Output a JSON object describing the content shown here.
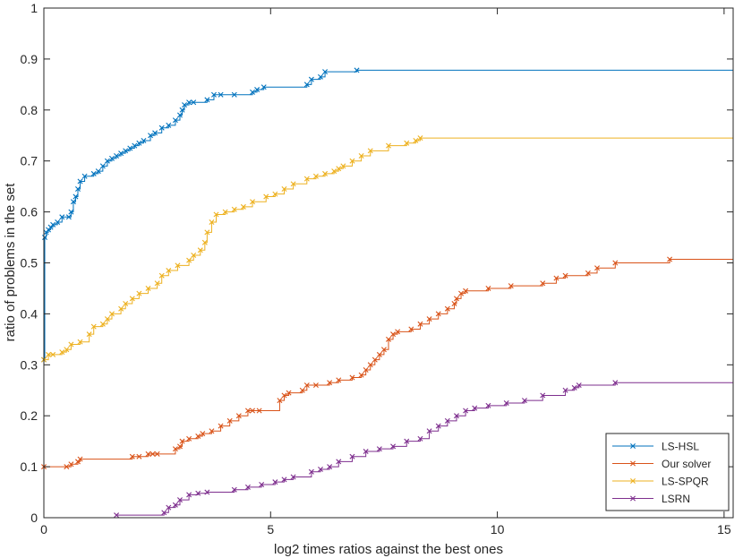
{
  "chart_data": {
    "type": "line",
    "title": "",
    "xlabel": "log2 times ratios against the best ones",
    "ylabel": "ratio of problems in the set",
    "xlim": [
      0,
      15.2
    ],
    "ylim": [
      0,
      1
    ],
    "xticks": [
      0,
      5,
      10,
      15
    ],
    "xtick_labels": [
      "0",
      "5",
      "10",
      "15"
    ],
    "yticks": [
      0,
      0.1,
      0.2,
      0.3,
      0.4,
      0.5,
      0.6,
      0.7,
      0.8,
      0.9,
      1
    ],
    "ytick_labels": [
      "0",
      "0.1",
      "0.2",
      "0.3",
      "0.4",
      "0.5",
      "0.6",
      "0.7",
      "0.8",
      "0.9",
      "1"
    ],
    "grid": false,
    "legend_position": "bottom-right",
    "marker": "x",
    "series": [
      {
        "name": "LS-HSL",
        "color": "#0072BD",
        "x": [
          0,
          0.02,
          0.05,
          0.1,
          0.15,
          0.2,
          0.3,
          0.4,
          0.55,
          0.6,
          0.65,
          0.7,
          0.75,
          0.8,
          0.9,
          1.1,
          1.2,
          1.3,
          1.4,
          1.5,
          1.6,
          1.7,
          1.8,
          1.9,
          2.0,
          2.1,
          2.2,
          2.35,
          2.45,
          2.6,
          2.75,
          2.9,
          3.0,
          3.05,
          3.1,
          3.2,
          3.3,
          3.6,
          3.75,
          3.9,
          4.2,
          4.6,
          4.7,
          4.85,
          5.8,
          5.9,
          6.1,
          6.2,
          6.9
        ],
        "y": [
          0.31,
          0.55,
          0.56,
          0.565,
          0.57,
          0.575,
          0.58,
          0.59,
          0.59,
          0.6,
          0.62,
          0.63,
          0.645,
          0.66,
          0.67,
          0.675,
          0.68,
          0.69,
          0.7,
          0.705,
          0.71,
          0.715,
          0.72,
          0.725,
          0.73,
          0.735,
          0.74,
          0.75,
          0.755,
          0.765,
          0.77,
          0.78,
          0.79,
          0.8,
          0.81,
          0.815,
          0.815,
          0.82,
          0.83,
          0.83,
          0.83,
          0.835,
          0.84,
          0.845,
          0.85,
          0.86,
          0.865,
          0.875,
          0.878
        ],
        "final_value": 0.878
      },
      {
        "name": "Our solver",
        "color": "#D95319",
        "x": [
          0,
          0.5,
          0.6,
          0.75,
          0.8,
          1.95,
          2.1,
          2.3,
          2.4,
          2.5,
          2.9,
          3.0,
          3.05,
          3.2,
          3.4,
          3.5,
          3.7,
          3.9,
          4.1,
          4.3,
          4.5,
          4.6,
          4.75,
          5.2,
          5.3,
          5.4,
          5.7,
          5.8,
          6.0,
          6.3,
          6.5,
          6.8,
          7.0,
          7.1,
          7.2,
          7.3,
          7.4,
          7.5,
          7.6,
          7.7,
          7.8,
          8.1,
          8.3,
          8.5,
          8.7,
          8.9,
          9.05,
          9.1,
          9.2,
          9.3,
          9.8,
          10.3,
          11.0,
          11.3,
          11.5,
          12.0,
          12.2,
          12.6,
          13.8
        ],
        "y": [
          0.1,
          0.1,
          0.105,
          0.11,
          0.115,
          0.12,
          0.12,
          0.125,
          0.125,
          0.125,
          0.135,
          0.14,
          0.15,
          0.155,
          0.16,
          0.165,
          0.17,
          0.18,
          0.19,
          0.2,
          0.21,
          0.21,
          0.21,
          0.23,
          0.24,
          0.245,
          0.25,
          0.26,
          0.26,
          0.265,
          0.27,
          0.275,
          0.28,
          0.29,
          0.3,
          0.31,
          0.32,
          0.33,
          0.35,
          0.36,
          0.365,
          0.37,
          0.38,
          0.39,
          0.4,
          0.41,
          0.42,
          0.43,
          0.44,
          0.445,
          0.45,
          0.455,
          0.46,
          0.47,
          0.475,
          0.48,
          0.49,
          0.5,
          0.507
        ],
        "final_value": 0.507
      },
      {
        "name": "LS-SPQR",
        "color": "#EDB120",
        "x": [
          0,
          0.1,
          0.2,
          0.4,
          0.5,
          0.6,
          0.8,
          1.0,
          1.1,
          1.3,
          1.4,
          1.5,
          1.7,
          1.8,
          1.95,
          2.1,
          2.3,
          2.5,
          2.6,
          2.75,
          2.95,
          3.2,
          3.3,
          3.45,
          3.55,
          3.6,
          3.7,
          3.8,
          4.0,
          4.2,
          4.4,
          4.6,
          4.9,
          5.1,
          5.3,
          5.5,
          5.8,
          6.0,
          6.2,
          6.4,
          6.5,
          6.6,
          6.8,
          7.0,
          7.2,
          7.6,
          8.0,
          8.2,
          8.3
        ],
        "y": [
          0.31,
          0.32,
          0.32,
          0.325,
          0.33,
          0.34,
          0.345,
          0.36,
          0.375,
          0.38,
          0.39,
          0.4,
          0.41,
          0.42,
          0.43,
          0.44,
          0.45,
          0.46,
          0.475,
          0.485,
          0.495,
          0.505,
          0.515,
          0.525,
          0.54,
          0.56,
          0.58,
          0.595,
          0.6,
          0.605,
          0.61,
          0.62,
          0.63,
          0.635,
          0.645,
          0.655,
          0.665,
          0.67,
          0.675,
          0.68,
          0.685,
          0.69,
          0.7,
          0.71,
          0.72,
          0.73,
          0.735,
          0.74,
          0.745
        ],
        "final_value": 0.745
      },
      {
        "name": "LSRN",
        "color": "#7E2F8E",
        "x": [
          1.6,
          2.65,
          2.75,
          2.9,
          3.0,
          3.2,
          3.4,
          3.6,
          4.2,
          4.5,
          4.8,
          5.1,
          5.3,
          5.5,
          5.9,
          6.1,
          6.3,
          6.5,
          6.8,
          7.1,
          7.4,
          7.7,
          8.0,
          8.3,
          8.5,
          8.7,
          8.9,
          9.1,
          9.3,
          9.5,
          9.8,
          10.2,
          10.6,
          11.0,
          11.5,
          11.7,
          11.8,
          12.6
        ],
        "y": [
          0.005,
          0.01,
          0.02,
          0.025,
          0.035,
          0.045,
          0.048,
          0.05,
          0.055,
          0.06,
          0.065,
          0.07,
          0.075,
          0.08,
          0.09,
          0.095,
          0.1,
          0.11,
          0.12,
          0.13,
          0.135,
          0.14,
          0.15,
          0.155,
          0.17,
          0.18,
          0.19,
          0.2,
          0.21,
          0.215,
          0.22,
          0.225,
          0.23,
          0.24,
          0.25,
          0.255,
          0.26,
          0.265
        ],
        "final_value": 0.27
      }
    ]
  }
}
